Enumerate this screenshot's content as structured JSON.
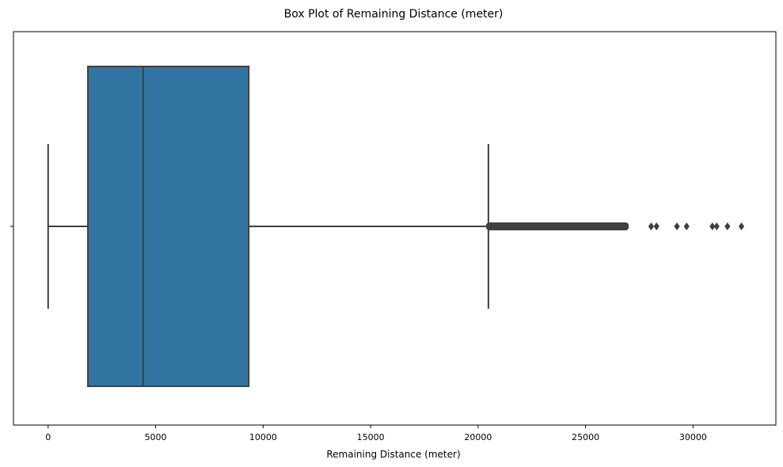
{
  "chart_data": {
    "type": "box",
    "title": "Box Plot of Remaining Distance (meter)",
    "xlabel": "Remaining Distance (meter)",
    "ylabel": "",
    "xlim": [
      -1613,
      33852
    ],
    "xticks": [
      0,
      5000,
      10000,
      15000,
      20000,
      25000,
      30000
    ],
    "tick_labels": [
      "0",
      "5000",
      "10000",
      "15000",
      "20000",
      "25000",
      "30000"
    ],
    "grid": false,
    "orientation": "horizontal",
    "box": {
      "whisker_low": 0,
      "q1": 1850,
      "median": 4420,
      "q3": 9330,
      "whisker_high": 20480
    },
    "outliers_dense_range": [
      20520,
      26860
    ],
    "outliers": [
      28050,
      28300,
      29250,
      29700,
      30900,
      31100,
      31600,
      32250
    ],
    "colors": {
      "box_fill": "#3274a1",
      "line": "#3f3f3f"
    }
  }
}
